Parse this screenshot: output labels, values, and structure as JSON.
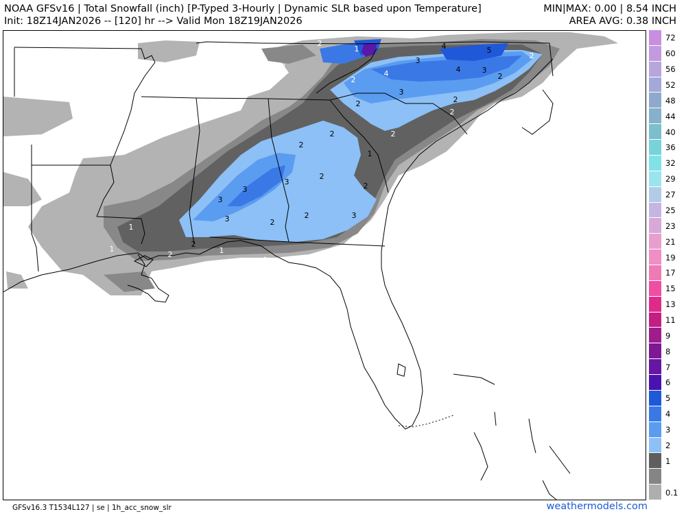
{
  "header": {
    "title": "NOAA GFSv16 | Total Snowfall (inch) [P-Typed 3-Hourly | Dynamic SLR based upon Temperature]",
    "init": "Init: 18Z14JAN2026 -- [120] hr --> Valid Mon 18Z19JAN2026",
    "minmax": "MIN|MAX: 0.00 | 8.54 INCH",
    "area_avg": "AREA AVG: 0.38 INCH"
  },
  "footer": {
    "model_info": "GFSv16.3 T1534L127 | se | 1h_acc_snow_slr",
    "brand": "weathermodels.com"
  },
  "legend": [
    {
      "label": "72",
      "color": "#c88ee0"
    },
    {
      "label": "60",
      "color": "#c29ae0"
    },
    {
      "label": "56",
      "color": "#b6a6dc"
    },
    {
      "label": "52",
      "color": "#a2a8d8"
    },
    {
      "label": "48",
      "color": "#8fa8ce"
    },
    {
      "label": "44",
      "color": "#86b0cc"
    },
    {
      "label": "40",
      "color": "#7cbfcc"
    },
    {
      "label": "36",
      "color": "#76d4d8"
    },
    {
      "label": "32",
      "color": "#80e2e6"
    },
    {
      "label": "29",
      "color": "#9ae4ee"
    },
    {
      "label": "27",
      "color": "#b2cbe8"
    },
    {
      "label": "25",
      "color": "#c4b6e0"
    },
    {
      "label": "23",
      "color": "#d8a8d8"
    },
    {
      "label": "21",
      "color": "#e89ecf"
    },
    {
      "label": "19",
      "color": "#f08ec6"
    },
    {
      "label": "17",
      "color": "#f07ab6"
    },
    {
      "label": "15",
      "color": "#ee4fa0"
    },
    {
      "label": "13",
      "color": "#e02a8a"
    },
    {
      "label": "11",
      "color": "#c41e84"
    },
    {
      "label": "9",
      "color": "#a01c8c"
    },
    {
      "label": "8",
      "color": "#7e1894"
    },
    {
      "label": "7",
      "color": "#6616a2"
    },
    {
      "label": "6",
      "color": "#4a12b0"
    },
    {
      "label": "5",
      "color": "#1f58d8"
    },
    {
      "label": "4",
      "color": "#3a78e6"
    },
    {
      "label": "3",
      "color": "#5a9cf0"
    },
    {
      "label": "2",
      "color": "#8cc0f6"
    },
    {
      "label": "1",
      "color": "#5e5e5e"
    },
    {
      "label": "",
      "color": "#858585"
    },
    {
      "label": "0.1",
      "color": "#aeaeae"
    }
  ],
  "map_labels": [
    {
      "t": "2",
      "c": "#ffffff"
    },
    {
      "t": "1",
      "c": "#ffffff"
    },
    {
      "t": "4",
      "c": "#000000"
    },
    {
      "t": "5",
      "c": "#000000"
    },
    {
      "t": "2",
      "c": "#ffffff"
    },
    {
      "t": "3",
      "c": "#000000"
    },
    {
      "t": "4",
      "c": "#ffffff"
    },
    {
      "t": "4",
      "c": "#000000"
    },
    {
      "t": "3",
      "c": "#000000"
    },
    {
      "t": "2",
      "c": "#000000"
    },
    {
      "t": "2",
      "c": "#ffffff"
    },
    {
      "t": "2",
      "c": "#ffffff"
    },
    {
      "t": "3",
      "c": "#000000"
    },
    {
      "t": "2",
      "c": "#000000"
    },
    {
      "t": "2",
      "c": "#000000"
    },
    {
      "t": "2",
      "c": "#ffffff"
    },
    {
      "t": "2",
      "c": "#ffffff"
    },
    {
      "t": "2",
      "c": "#000000"
    },
    {
      "t": "2",
      "c": "#000000"
    },
    {
      "t": "1",
      "c": "#000000"
    },
    {
      "t": "3",
      "c": "#000000"
    },
    {
      "t": "3",
      "c": "#000000"
    },
    {
      "t": "3",
      "c": "#000000"
    },
    {
      "t": "2",
      "c": "#000000"
    },
    {
      "t": "2",
      "c": "#000000"
    },
    {
      "t": "2",
      "c": "#000000"
    },
    {
      "t": "3",
      "c": "#000000"
    },
    {
      "t": "2",
      "c": "#000000"
    },
    {
      "t": "3",
      "c": "#000000"
    },
    {
      "t": "1",
      "c": "#ffffff"
    },
    {
      "t": "1",
      "c": "#ffffff"
    },
    {
      "t": "2",
      "c": "#000000"
    },
    {
      "t": "2",
      "c": "#ffffff"
    },
    {
      "t": "1",
      "c": "#ffffff"
    },
    {
      "t": "1",
      "c": "#ffffff"
    }
  ]
}
